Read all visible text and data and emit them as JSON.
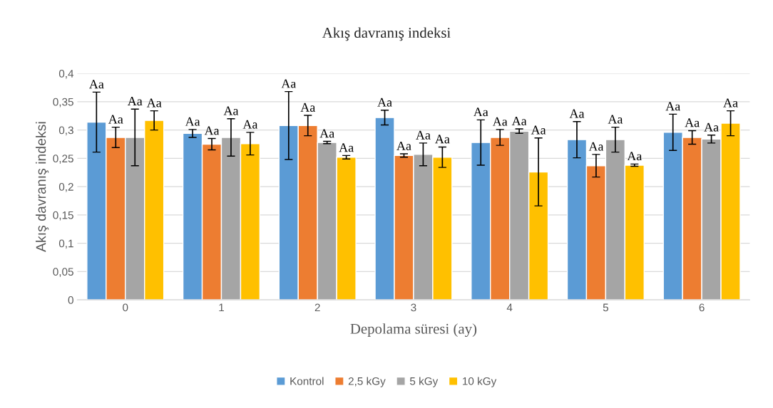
{
  "chart_data": {
    "type": "bar",
    "title": "Akış davranış indeksi",
    "xlabel": "Depolama süresi (ay)",
    "ylabel": "Akış davranış indeksi",
    "categories": [
      "0",
      "1",
      "2",
      "3",
      "4",
      "5",
      "6"
    ],
    "series": [
      {
        "name": "Kontrol",
        "color": "#5b9bd5",
        "values": [
          0.314,
          0.294,
          0.308,
          0.322,
          0.278,
          0.283,
          0.296
        ],
        "errors": [
          0.053,
          0.007,
          0.06,
          0.013,
          0.04,
          0.032,
          0.032
        ],
        "value_labels": [
          "Aa",
          "Aa",
          "Aa",
          "Aa",
          "Aa",
          "Aa",
          "Aa"
        ]
      },
      {
        "name": "2,5 kGy",
        "color": "#ed7d31",
        "values": [
          0.287,
          0.275,
          0.308,
          0.255,
          0.287,
          0.237,
          0.287
        ],
        "errors": [
          0.018,
          0.01,
          0.018,
          0.003,
          0.014,
          0.02,
          0.012
        ],
        "value_labels": [
          "Aa",
          "Aa",
          "Aa",
          "Aa",
          "Aa",
          "Aa",
          "Aa"
        ]
      },
      {
        "name": "5 kGy",
        "color": "#a5a5a5",
        "values": [
          0.287,
          0.287,
          0.278,
          0.257,
          0.298,
          0.283,
          0.284
        ],
        "errors": [
          0.05,
          0.033,
          0.002,
          0.02,
          0.004,
          0.022,
          0.007
        ],
        "value_labels": [
          "Aa",
          "Aa",
          "Aa",
          "Aa",
          "Aa",
          "Aa",
          "Aa"
        ]
      },
      {
        "name": "10 kGy",
        "color": "#ffc000",
        "values": [
          0.317,
          0.276,
          0.252,
          0.252,
          0.226,
          0.238,
          0.312
        ],
        "errors": [
          0.017,
          0.02,
          0.003,
          0.018,
          0.06,
          0.002,
          0.022
        ],
        "value_labels": [
          "Aa",
          "Aa",
          "Aa",
          "Aa",
          "Aa",
          "Aa",
          "Aa"
        ]
      }
    ],
    "ylim": [
      0,
      0.4
    ],
    "yticks": [
      {
        "value": 0,
        "label": "0"
      },
      {
        "value": 0.05,
        "label": "0,05"
      },
      {
        "value": 0.1,
        "label": "0,1"
      },
      {
        "value": 0.15,
        "label": "0,15"
      },
      {
        "value": 0.2,
        "label": "0,2"
      },
      {
        "value": 0.25,
        "label": "0,25"
      },
      {
        "value": 0.3,
        "label": "0,3"
      },
      {
        "value": 0.35,
        "label": "0,35"
      },
      {
        "value": 0.4,
        "label": "0,4"
      }
    ],
    "grid": "y",
    "legend": "bottom"
  }
}
